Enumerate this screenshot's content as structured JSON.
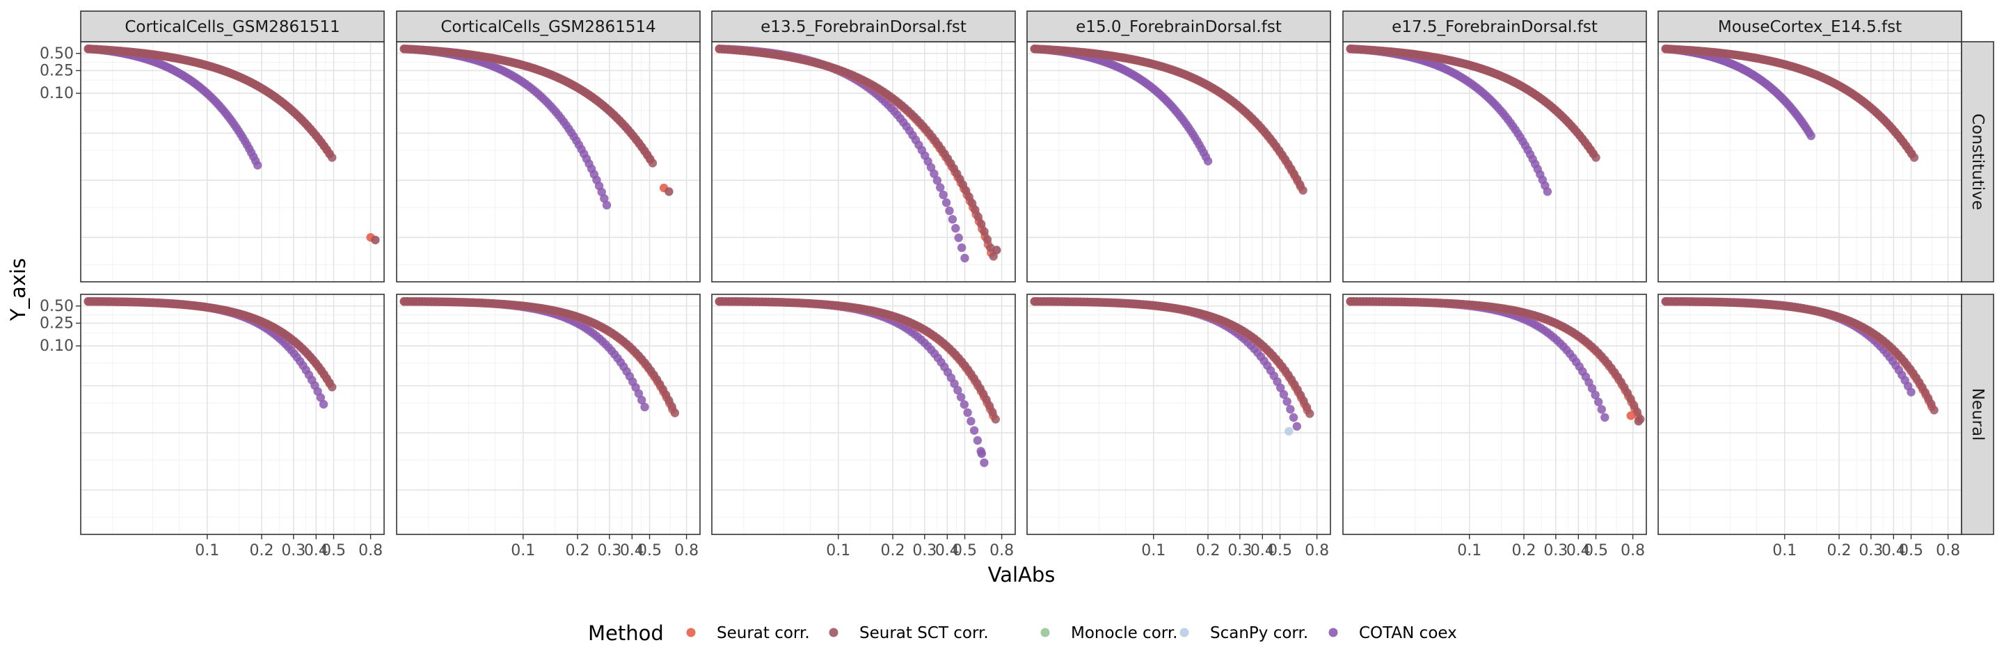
{
  "chart_data": {
    "type": "scatter",
    "title": "",
    "xlabel": "ValAbs",
    "ylabel": "Y_axis",
    "x_scale": "log",
    "xlim": [
      0.02,
      0.95
    ],
    "x_ticks": [
      0.1,
      0.2,
      0.3,
      0.4,
      0.5,
      0.8
    ],
    "x_tick_labels": [
      "0.1",
      "0.2",
      "0.3",
      "0.4",
      "0.5",
      "0.8"
    ],
    "y_scale": "log",
    "ylim": [
      5e-05,
      0.8
    ],
    "y_ticks": [
      0.5,
      0.25,
      0.1
    ],
    "y_tick_labels": [
      "0.50",
      "0.25",
      "0.10"
    ],
    "grid": true,
    "facet_columns": [
      "CorticalCells_GSM2861511",
      "CorticalCells_GSM2861514",
      "e13.5_ForebrainDorsal.fst",
      "e15.0_ForebrainDorsal.fst",
      "e17.5_ForebrainDorsal.fst",
      "MouseCortex_E14.5.fst"
    ],
    "facet_rows": [
      "Constitutive",
      "Neural"
    ],
    "legend": {
      "title": "Method",
      "position": "bottom",
      "entries": [
        {
          "name": "Seurat corr.",
          "color": "#E8604C"
        },
        {
          "name": "Seurat SCT corr.",
          "color": "#9E5561"
        },
        {
          "name": "Monocle corr.",
          "color": "#98C59A"
        },
        {
          "name": "ScanPy corr.",
          "color": "#B8CDE6"
        },
        {
          "name": "COTAN coex",
          "color": "#8C5BB0"
        }
      ]
    },
    "panels": [
      [
        {
          "main_end": [
            0.49,
            0.0075
          ],
          "cotan_end": [
            0.19,
            0.0055
          ],
          "extra": [
            [
              0.8,
              0.0003,
              "#E8604C"
            ],
            [
              0.85,
              0.00027,
              "#9E5561"
            ]
          ]
        },
        {
          "main_end": [
            0.52,
            0.006
          ],
          "cotan_end": [
            0.29,
            0.0011
          ],
          "extra": [
            [
              0.6,
              0.0022,
              "#E8604C"
            ],
            [
              0.64,
              0.0019,
              "#9E5561"
            ]
          ]
        },
        {
          "main_end": [
            0.72,
            0.00014
          ],
          "cotan_end": [
            0.5,
            0.00013
          ],
          "extra": [
            [
              0.75,
              0.00018,
              "#9E5561"
            ]
          ]
        },
        {
          "main_end": [
            0.67,
            0.002
          ],
          "cotan_end": [
            0.2,
            0.0065
          ],
          "extra": []
        },
        {
          "main_end": [
            0.5,
            0.0075
          ],
          "cotan_end": [
            0.27,
            0.0019
          ],
          "extra": []
        },
        {
          "main_end": [
            0.52,
            0.0075
          ],
          "cotan_end": [
            0.14,
            0.018
          ],
          "extra": []
        }
      ],
      [
        {
          "main_end": [
            0.49,
            0.019
          ],
          "cotan_end": [
            0.44,
            0.0095
          ],
          "extra": []
        },
        {
          "main_end": [
            0.69,
            0.0067
          ],
          "cotan_end": [
            0.47,
            0.0085
          ],
          "extra": []
        },
        {
          "main_end": [
            0.74,
            0.0052
          ],
          "cotan_end": [
            0.64,
            0.0009
          ],
          "extra": [
            [
              0.62,
              0.0013,
              "#8C5BB0"
            ]
          ]
        },
        {
          "main_end": [
            0.73,
            0.0065
          ],
          "cotan_end": [
            0.62,
            0.0039
          ],
          "extra": [
            [
              0.56,
              0.0032,
              "#B8CDE6"
            ]
          ]
        },
        {
          "main_end": [
            0.88,
            0.0052
          ],
          "cotan_end": [
            0.56,
            0.0056
          ],
          "extra": [
            [
              0.78,
              0.006,
              "#E8604C"
            ],
            [
              0.86,
              0.0048,
              "#9E5561"
            ]
          ]
        },
        {
          "main_end": [
            0.67,
            0.0075
          ],
          "cotan_end": [
            0.5,
            0.0155
          ],
          "extra": []
        }
      ]
    ]
  }
}
